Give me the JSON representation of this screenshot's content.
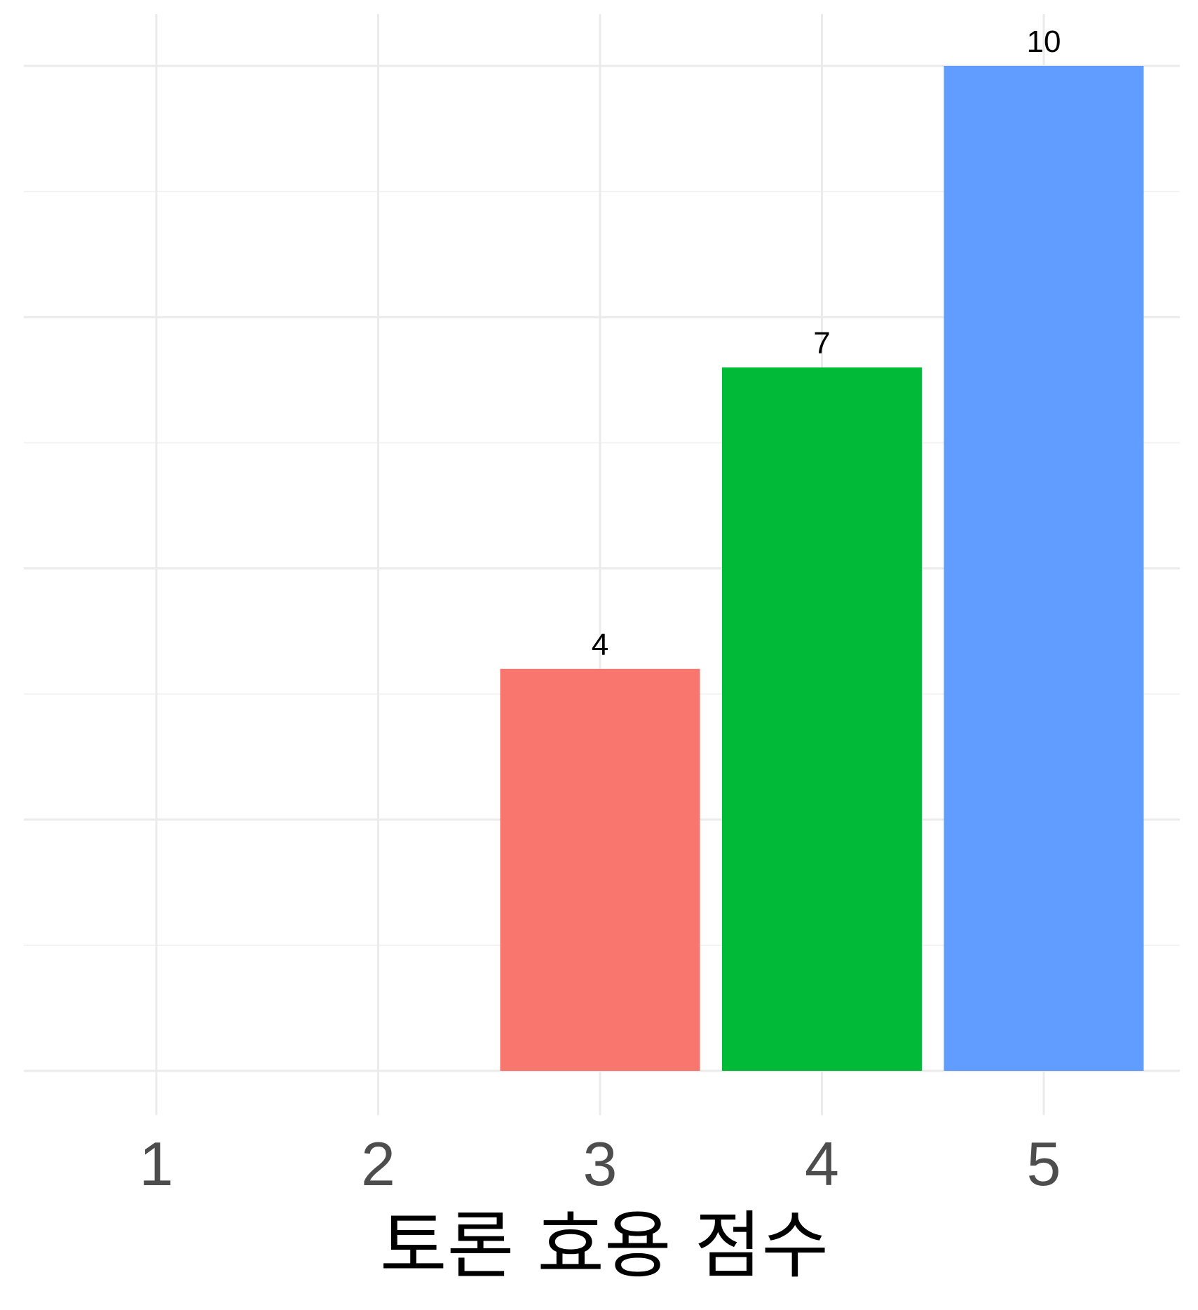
{
  "chart_data": {
    "type": "bar",
    "categories": [
      "1",
      "2",
      "3",
      "4",
      "5"
    ],
    "values": [
      null,
      null,
      4,
      7,
      10
    ],
    "data_labels": [
      "",
      "",
      "4",
      "7",
      "10"
    ],
    "bar_colors": [
      "#F8766D",
      "#F8766D",
      "#F8766D",
      "#00BA38",
      "#619CFF"
    ],
    "xlabel": "토론 효용 점수",
    "ylabel": "",
    "ylim": [
      0,
      10.5
    ],
    "grid": true,
    "legend": "none"
  }
}
